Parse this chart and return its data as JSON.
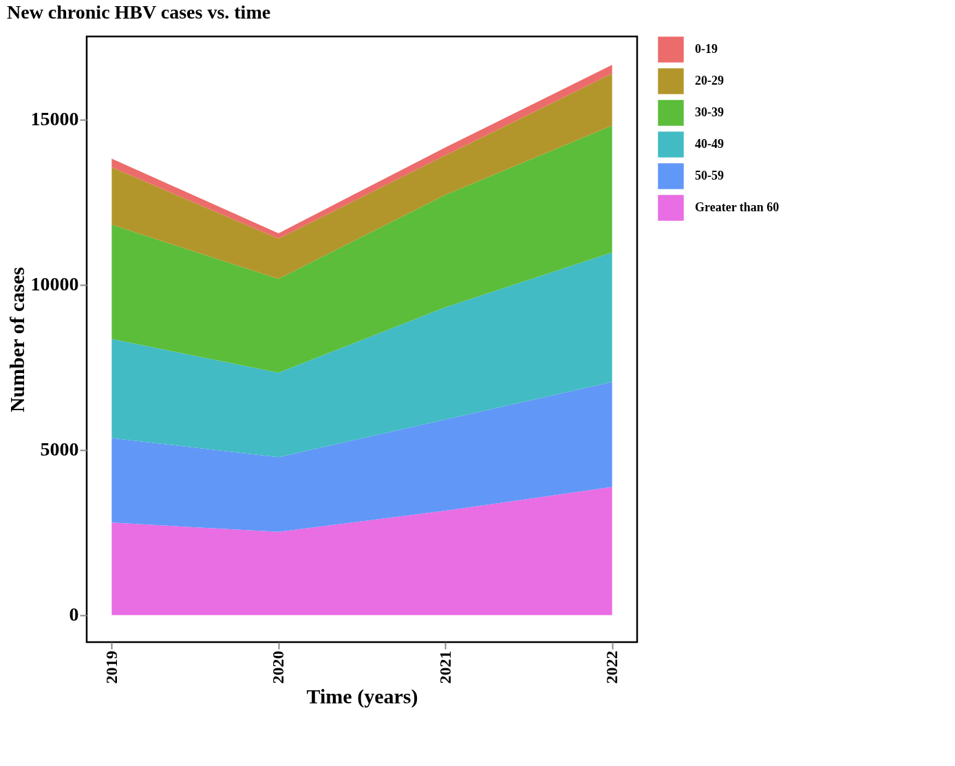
{
  "chart_data": {
    "type": "area",
    "stacked": true,
    "title": "New chronic HBV cases vs. time",
    "xlabel": "Time (years)",
    "ylabel": "Number of cases",
    "x": [
      2019,
      2020,
      2021,
      2022
    ],
    "series": [
      {
        "name": "Greater than 60",
        "color": "#e96de3",
        "values": [
          2800,
          2520,
          3160,
          3880
        ]
      },
      {
        "name": "50-59",
        "color": "#6197f7",
        "values": [
          2560,
          2260,
          2760,
          3180
        ]
      },
      {
        "name": "40-49",
        "color": "#42bbc4",
        "values": [
          3000,
          2560,
          3400,
          3920
        ]
      },
      {
        "name": "30-39",
        "color": "#5bbd3a",
        "values": [
          3460,
          2840,
          3400,
          3840
        ]
      },
      {
        "name": "20-29",
        "color": "#b3962b",
        "values": [
          1740,
          1220,
          1200,
          1580
        ]
      },
      {
        "name": "0-19",
        "color": "#ec6b6b",
        "values": [
          260,
          160,
          240,
          260
        ]
      }
    ],
    "xlim": [
      2018.85,
      2022.15
    ],
    "xticks": [
      2019,
      2020,
      2021,
      2022
    ],
    "ylim": [
      -820,
      17520
    ],
    "yticks": [
      0,
      5000,
      10000,
      15000
    ],
    "grid": false,
    "legend": "right"
  }
}
